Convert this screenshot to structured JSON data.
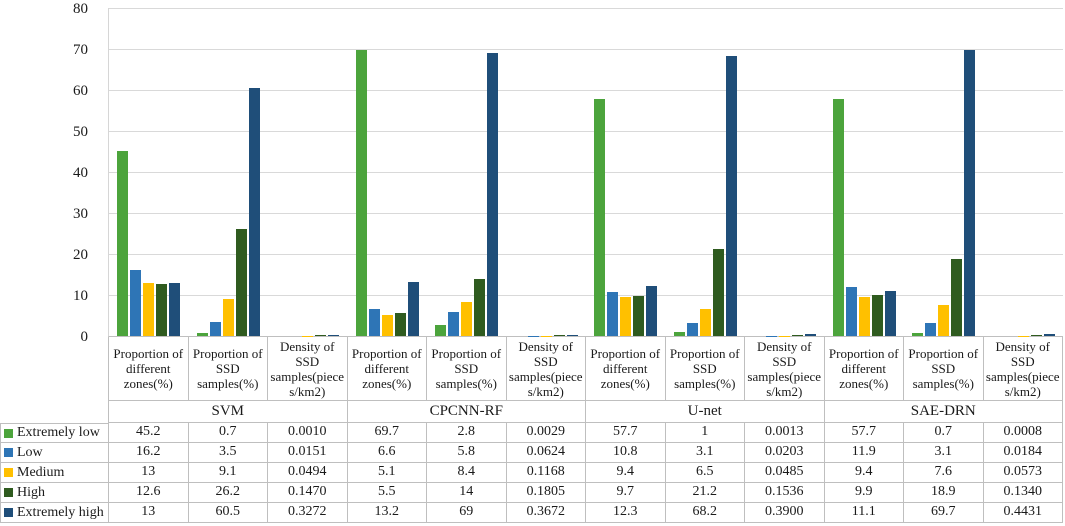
{
  "chart_data": {
    "type": "bar",
    "title": "",
    "xlabel": "",
    "ylabel": "",
    "ylim": [
      0,
      80
    ],
    "y_ticks": [
      "0",
      "10",
      "20",
      "30",
      "40",
      "50",
      "60",
      "70",
      "80"
    ],
    "grid": true,
    "legend_position": "table-left",
    "groups": [
      "SVM",
      "CPCNN-RF",
      "U-net",
      "SAE-DRN"
    ],
    "categories": [
      "Proportion of different zones(%)",
      "Proportion of SSD samples(%)",
      "Density of SSD samples(pieces/km2)"
    ],
    "series": [
      {
        "name": "Extremely low",
        "color": "#4ca43c",
        "values": [
          "45.2",
          "0.7",
          "0.0010",
          "69.7",
          "2.8",
          "0.0029",
          "57.7",
          "1",
          "0.0013",
          "57.7",
          "0.7",
          "0.0008"
        ]
      },
      {
        "name": "Low",
        "color": "#2e75b6",
        "values": [
          "16.2",
          "3.5",
          "0.0151",
          "6.6",
          "5.8",
          "0.0624",
          "10.8",
          "3.1",
          "0.0203",
          "11.9",
          "3.1",
          "0.0184"
        ]
      },
      {
        "name": "Medium",
        "color": "#ffc000",
        "values": [
          "13",
          "9.1",
          "0.0494",
          "5.1",
          "8.4",
          "0.1168",
          "9.4",
          "6.5",
          "0.0485",
          "9.4",
          "7.6",
          "0.0573"
        ]
      },
      {
        "name": "High",
        "color": "#2f5b1f",
        "values": [
          "12.6",
          "26.2",
          "0.1470",
          "5.5",
          "14",
          "0.1805",
          "9.7",
          "21.2",
          "0.1536",
          "9.9",
          "18.9",
          "0.1340"
        ]
      },
      {
        "name": "Extremely high",
        "color": "#1f4e79",
        "values": [
          "13",
          "60.5",
          "0.3272",
          "13.2",
          "69",
          "0.3672",
          "12.3",
          "68.2",
          "0.3900",
          "11.1",
          "69.7",
          "0.4431"
        ]
      }
    ]
  }
}
